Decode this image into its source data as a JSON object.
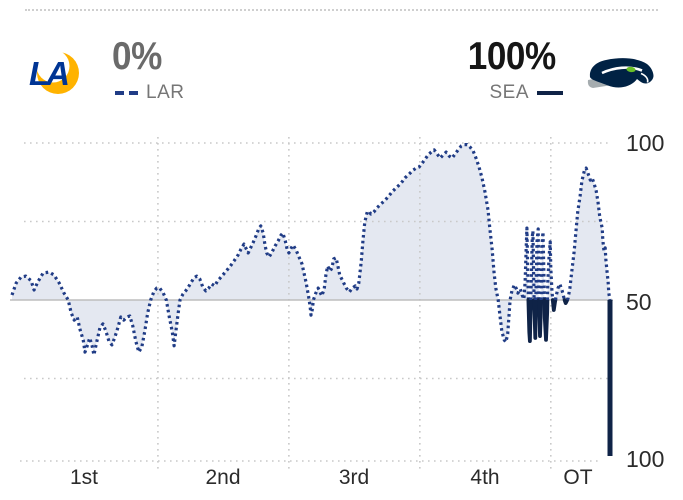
{
  "header": {
    "away": {
      "abbr": "LAR",
      "probability": "0%",
      "logo_icon": "rams-logo",
      "line_style": "dashed"
    },
    "home": {
      "abbr": "SEA",
      "probability": "100%",
      "logo_icon": "seahawks-logo",
      "line_style": "solid"
    }
  },
  "colors": {
    "lar_line": "#203c86",
    "sea_line": "#0f2347",
    "area_fill": "#dfe4ef",
    "gridline": "#c9c9c9",
    "baseline_50": "#bdbdbd",
    "away_pct_text": "#6a6a6a",
    "home_pct_text": "#161616",
    "axis_text": "#2b2b2b",
    "rams_blue": "#003594",
    "rams_gold": "#FFB300",
    "seahawks_navy": "#002244",
    "seahawks_gray": "#A5ACAF",
    "seahawks_green": "#69BE28"
  },
  "chart_data": {
    "type": "line",
    "description": "Win probability over game time; dotted = LAR above 50%, solid = SEA below 50%",
    "x_tick_labels": [
      "1st",
      "2nd",
      "3rd",
      "4th",
      "OT"
    ],
    "y_tick_labels": {
      "top": "100",
      "mid": "50",
      "bottom": "100"
    },
    "quarter_boundaries_t": [
      24.4,
      46.3,
      68.2,
      90.1
    ],
    "h_gridlines_p": [
      100,
      75,
      25
    ],
    "final_probabilities": {
      "LAR": 0,
      "SEA": 100
    },
    "series": [
      {
        "name": "LAR",
        "style": "dashed"
      },
      {
        "name": "SEA",
        "style": "solid"
      }
    ],
    "points": [
      [
        0,
        51.6
      ],
      [
        0.7,
        55.4
      ],
      [
        1.5,
        57.3
      ],
      [
        2.3,
        57.6
      ],
      [
        3.2,
        56.1
      ],
      [
        3.7,
        53.2
      ],
      [
        4.3,
        55.7
      ],
      [
        5.2,
        58.6
      ],
      [
        6.2,
        58.9
      ],
      [
        7,
        58
      ],
      [
        7.9,
        55.4
      ],
      [
        8.7,
        52.2
      ],
      [
        9.4,
        50
      ],
      [
        9.9,
        45.9
      ],
      [
        10.4,
        43.6
      ],
      [
        10.9,
        44.6
      ],
      [
        11.4,
        40.4
      ],
      [
        11.9,
        37.3
      ],
      [
        12.2,
        33.4
      ],
      [
        12.7,
        36
      ],
      [
        13,
        37.9
      ],
      [
        13.4,
        35.4
      ],
      [
        13.7,
        32.5
      ],
      [
        14.2,
        36.9
      ],
      [
        14.7,
        41.1
      ],
      [
        15.2,
        42.4
      ],
      [
        15.7,
        40.1
      ],
      [
        16.2,
        36.9
      ],
      [
        16.7,
        35.7
      ],
      [
        17.2,
        38.2
      ],
      [
        17.7,
        41.1
      ],
      [
        18.2,
        44.6
      ],
      [
        18.7,
        43.6
      ],
      [
        19.2,
        44.6
      ],
      [
        19.7,
        44.9
      ],
      [
        20.2,
        41.7
      ],
      [
        20.7,
        36.9
      ],
      [
        21.2,
        33.4
      ],
      [
        21.7,
        35
      ],
      [
        22.2,
        40.1
      ],
      [
        22.7,
        45.9
      ],
      [
        23.2,
        50
      ],
      [
        23.7,
        52.5
      ],
      [
        24.2,
        53.8
      ],
      [
        24.7,
        53.8
      ],
      [
        25.3,
        52.2
      ],
      [
        25.8,
        50
      ],
      [
        26.3,
        44.6
      ],
      [
        26.8,
        39.8
      ],
      [
        27.1,
        35.4
      ],
      [
        27.4,
        40.1
      ],
      [
        27.8,
        45.9
      ],
      [
        28.1,
        50
      ],
      [
        28.6,
        51.9
      ],
      [
        29.3,
        53.5
      ],
      [
        29.9,
        55.4
      ],
      [
        30.4,
        57
      ],
      [
        30.9,
        57.6
      ],
      [
        31.4,
        56.7
      ],
      [
        31.9,
        54.1
      ],
      [
        32.4,
        52.9
      ],
      [
        32.9,
        53.8
      ],
      [
        33.4,
        55.1
      ],
      [
        33.9,
        54.5
      ],
      [
        34.4,
        56.1
      ],
      [
        35.1,
        57.6
      ],
      [
        35.8,
        59.2
      ],
      [
        36.5,
        60.8
      ],
      [
        37.1,
        62.4
      ],
      [
        37.8,
        64.3
      ],
      [
        38.3,
        66.2
      ],
      [
        38.8,
        67.8
      ],
      [
        39.1,
        66.6
      ],
      [
        39.5,
        65
      ],
      [
        39.8,
        66.2
      ],
      [
        40.3,
        68.2
      ],
      [
        40.8,
        70.4
      ],
      [
        41.3,
        72.9
      ],
      [
        41.6,
        73.6
      ],
      [
        42,
        71.3
      ],
      [
        42.3,
        67.5
      ],
      [
        42.6,
        65
      ],
      [
        43,
        63.7
      ],
      [
        43.5,
        65.3
      ],
      [
        44,
        67.2
      ],
      [
        44.5,
        68.8
      ],
      [
        45,
        70.7
      ],
      [
        45.3,
        71.3
      ],
      [
        45.7,
        68.8
      ],
      [
        46,
        66.2
      ],
      [
        46.3,
        65
      ],
      [
        46.7,
        66.6
      ],
      [
        47,
        67.5
      ],
      [
        47.5,
        65.9
      ],
      [
        48,
        63.7
      ],
      [
        48.5,
        61.5
      ],
      [
        48.8,
        58.9
      ],
      [
        49.2,
        55.4
      ],
      [
        49.7,
        50
      ],
      [
        49.9,
        47.1
      ],
      [
        50,
        45.2
      ],
      [
        50.2,
        46.8
      ],
      [
        50.4,
        50
      ],
      [
        50.8,
        52.2
      ],
      [
        51.2,
        53.8
      ],
      [
        51.5,
        52.5
      ],
      [
        51.8,
        51.3
      ],
      [
        52.2,
        53.5
      ],
      [
        52.5,
        58
      ],
      [
        52.8,
        60.8
      ],
      [
        53.2,
        59.2
      ],
      [
        53.5,
        60.2
      ],
      [
        53.8,
        63.1
      ],
      [
        54.2,
        63.4
      ],
      [
        54.5,
        60.8
      ],
      [
        54.8,
        58
      ],
      [
        55.4,
        55.7
      ],
      [
        55.9,
        53.8
      ],
      [
        56.4,
        52.5
      ],
      [
        56.9,
        53.8
      ],
      [
        57.4,
        54.5
      ],
      [
        57.7,
        53.5
      ],
      [
        58,
        55.4
      ],
      [
        58.4,
        62.1
      ],
      [
        58.7,
        69.1
      ],
      [
        59,
        74.8
      ],
      [
        59.4,
        78
      ],
      [
        59.7,
        78.3
      ],
      [
        60,
        77.4
      ],
      [
        60.5,
        78
      ],
      [
        61,
        79.3
      ],
      [
        61.7,
        80.6
      ],
      [
        62.4,
        81.8
      ],
      [
        63,
        83.1
      ],
      [
        63.7,
        84.7
      ],
      [
        64.4,
        86
      ],
      [
        65.1,
        87.3
      ],
      [
        65.7,
        88.9
      ],
      [
        66.4,
        90.1
      ],
      [
        67.1,
        91.4
      ],
      [
        67.6,
        92
      ],
      [
        68.1,
        92.4
      ],
      [
        68.6,
        93.6
      ],
      [
        69.1,
        94.9
      ],
      [
        69.6,
        96.2
      ],
      [
        70.1,
        97.1
      ],
      [
        70.6,
        97.8
      ],
      [
        71.1,
        96.5
      ],
      [
        71.6,
        95.2
      ],
      [
        72.1,
        96.2
      ],
      [
        72.6,
        97.1
      ],
      [
        73.1,
        95.9
      ],
      [
        73.6,
        95.2
      ],
      [
        74.1,
        96.5
      ],
      [
        74.6,
        97.8
      ],
      [
        75.1,
        99
      ],
      [
        75.6,
        99.5
      ],
      [
        76.1,
        99.5
      ],
      [
        76.6,
        98.7
      ],
      [
        77.1,
        97.5
      ],
      [
        77.6,
        95.2
      ],
      [
        78.1,
        92.4
      ],
      [
        78.6,
        88.9
      ],
      [
        79.1,
        84.4
      ],
      [
        79.6,
        78.7
      ],
      [
        79.9,
        72.9
      ],
      [
        80.3,
        65.9
      ],
      [
        80.6,
        58.9
      ],
      [
        80.9,
        53.8
      ],
      [
        81.3,
        50
      ],
      [
        81.6,
        44.9
      ],
      [
        81.9,
        40.1
      ],
      [
        82.3,
        37.3
      ],
      [
        82.6,
        36.6
      ],
      [
        82.9,
        39.2
      ],
      [
        83.1,
        44.6
      ],
      [
        83.3,
        50
      ],
      [
        83.6,
        52.9
      ],
      [
        84,
        54.8
      ],
      [
        84.3,
        53.8
      ],
      [
        84.6,
        52.2
      ],
      [
        85,
        53.5
      ],
      [
        85.3,
        51.6
      ],
      [
        85.6,
        50.3
      ],
      [
        85.8,
        55.7
      ],
      [
        86,
        67.5
      ],
      [
        86.1,
        72.9
      ],
      [
        86.3,
        53.8
      ],
      [
        86.5,
        39.8
      ],
      [
        86.6,
        36.9
      ],
      [
        86.8,
        53.8
      ],
      [
        87,
        70.1
      ],
      [
        87.1,
        72
      ],
      [
        87.3,
        50.6
      ],
      [
        87.5,
        37.9
      ],
      [
        87.6,
        50.6
      ],
      [
        87.8,
        68.5
      ],
      [
        88,
        72.6
      ],
      [
        88.1,
        50.6
      ],
      [
        88.3,
        38.5
      ],
      [
        88.5,
        50.6
      ],
      [
        88.6,
        66.9
      ],
      [
        88.8,
        71.7
      ],
      [
        89,
        53.8
      ],
      [
        89.1,
        44.3
      ],
      [
        89.3,
        37.3
      ],
      [
        89.5,
        46.2
      ],
      [
        89.6,
        55.7
      ],
      [
        89.8,
        63.4
      ],
      [
        90,
        68.5
      ],
      [
        90.1,
        60.2
      ],
      [
        90.3,
        52.5
      ],
      [
        90.5,
        48.7
      ],
      [
        90.6,
        46.8
      ],
      [
        90.8,
        49.4
      ],
      [
        91,
        51.3
      ],
      [
        91.3,
        53.8
      ],
      [
        91.6,
        55.1
      ],
      [
        92,
        52.9
      ],
      [
        92.3,
        50.6
      ],
      [
        92.6,
        49
      ],
      [
        93,
        50.6
      ],
      [
        93.3,
        53.8
      ],
      [
        93.6,
        58.9
      ],
      [
        94,
        65.3
      ],
      [
        94.3,
        71.7
      ],
      [
        94.6,
        78
      ],
      [
        95,
        83.1
      ],
      [
        95.3,
        87.9
      ],
      [
        95.7,
        91.1
      ],
      [
        96,
        92
      ],
      [
        96.3,
        90.4
      ],
      [
        96.7,
        88.2
      ],
      [
        97,
        88.9
      ],
      [
        97.3,
        87.3
      ],
      [
        97.7,
        84.7
      ],
      [
        98,
        81.2
      ],
      [
        98.3,
        76.4
      ],
      [
        98.7,
        72.9
      ],
      [
        98.8,
        69.1
      ],
      [
        99,
        65.6
      ],
      [
        99.2,
        66.6
      ],
      [
        99.3,
        63.1
      ],
      [
        99.5,
        59.2
      ],
      [
        99.7,
        55.4
      ],
      [
        99.8,
        52.2
      ],
      [
        100,
        50
      ]
    ],
    "final_drop": {
      "t": 100,
      "from": 50,
      "to": 0
    }
  }
}
